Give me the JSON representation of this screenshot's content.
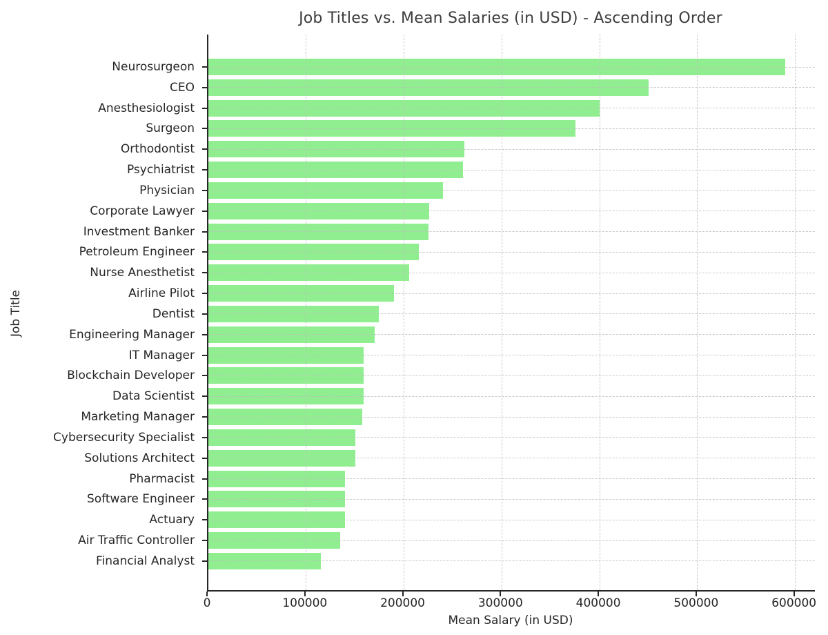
{
  "chart_data": {
    "type": "bar",
    "orientation": "horizontal",
    "title": "Job Titles vs. Mean Salaries (in USD) - Ascending Order",
    "xlabel": "Mean Salary (in USD)",
    "ylabel": "Job Title",
    "sort_order": "ascending (lowest at bottom, highest at top)",
    "categories": [
      "Neurosurgeon",
      "CEO",
      "Anesthesiologist",
      "Surgeon",
      "Orthodontist",
      "Psychiatrist",
      "Physician",
      "Corporate Lawyer",
      "Investment Banker",
      "Petroleum Engineer",
      "Nurse Anesthetist",
      "Airline Pilot",
      "Dentist",
      "Engineering Manager",
      "IT Manager",
      "Blockchain Developer",
      "Data Scientist",
      "Marketing Manager",
      "Cybersecurity Specialist",
      "Solutions Architect",
      "Pharmacist",
      "Software Engineer",
      "Actuary",
      "Air Traffic Controller",
      "Financial Analyst"
    ],
    "values": [
      590000,
      450000,
      400000,
      375000,
      262000,
      260000,
      240000,
      226000,
      225000,
      215000,
      205000,
      190000,
      174000,
      170000,
      159000,
      159000,
      159000,
      157000,
      150000,
      150000,
      140000,
      140000,
      140000,
      135000,
      115000
    ],
    "xticks": [
      0,
      100000,
      200000,
      300000,
      400000,
      500000,
      600000
    ],
    "xlim": [
      0,
      620000
    ],
    "grid": "dashed, both axes, drawn over bars",
    "bar_color": "#90EE90",
    "grid_color": "#bebebe",
    "axis_color": "#262626",
    "text_color": "#262626",
    "background_color": "#ffffff"
  }
}
